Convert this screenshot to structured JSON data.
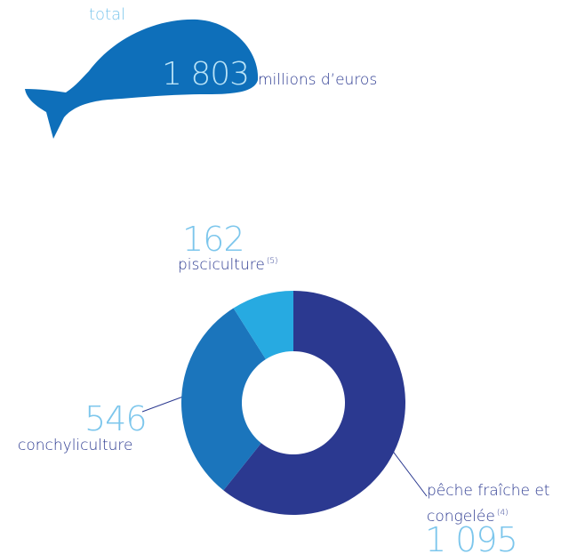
{
  "chart_data": {
    "type": "donut",
    "total_label": "total",
    "total": {
      "value": 1803,
      "label": "1 803"
    },
    "unit": "millions d’euros",
    "categories": [
      "pêche fraîche et congelée",
      "conchyliculture",
      "pisciculture"
    ],
    "notes": [
      "(4)",
      null,
      "(5)"
    ],
    "values": [
      1095,
      546,
      162
    ],
    "value_labels": [
      "1 095",
      "546",
      "162"
    ],
    "colors": [
      "#2b3990",
      "#1b75bc",
      "#27aae1"
    ]
  }
}
